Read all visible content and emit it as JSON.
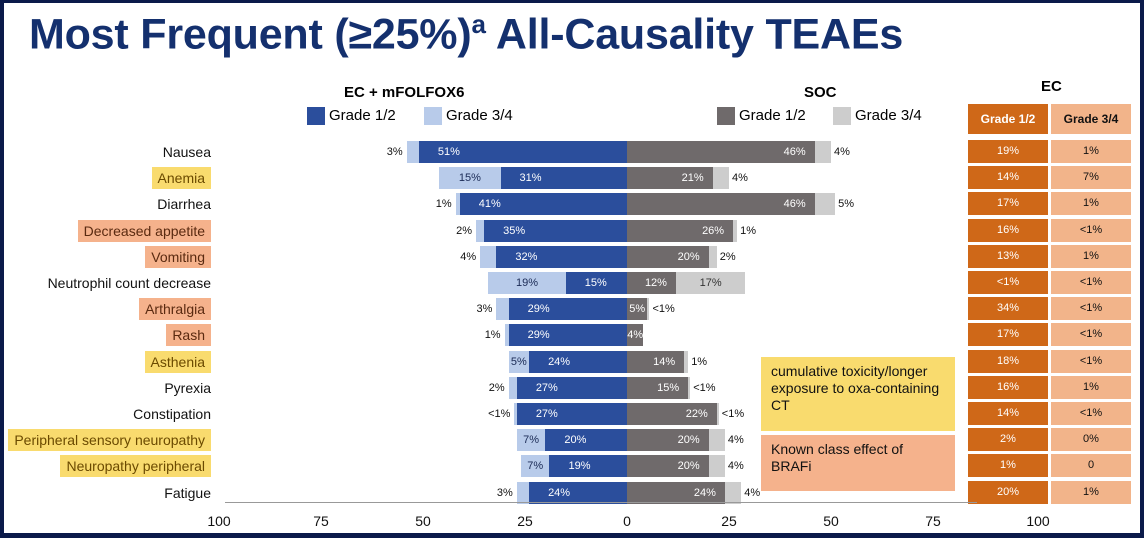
{
  "title": {
    "main": "Most Frequent (≥25%)",
    "sup": "a",
    "rest": " All-Causality TEAEs"
  },
  "groups": {
    "left": "EC + mFOLFOX6",
    "right": "SOC",
    "ec": "EC"
  },
  "legend": {
    "left_g12": "Grade 1/2",
    "left_g34": "Grade 3/4",
    "right_g12": "Grade 1/2",
    "right_g34": "Grade 3/4",
    "ec_g12": "Grade 1/2",
    "ec_g34": "Grade 3/4"
  },
  "colors": {
    "left_g12": "#2b4e9c",
    "left_g34": "#b8cbea",
    "right_g12": "#6f6a6b",
    "right_g34": "#cdcdcd",
    "ec_g12": "#cf6818",
    "ec_g34": "#f2b48a",
    "highlight_yellow": "#f9db6e",
    "highlight_orange": "#f5b28c",
    "title": "#14306e"
  },
  "notes": {
    "yellow": "cumulative toxicity/longer exposure to oxa-containing CT",
    "orange": "Known class effect of BRAFi"
  },
  "chart_data": {
    "type": "bar",
    "orientation": "horizontal-diverging",
    "categories": [
      "Nausea",
      "Anemia",
      "Diarrhea",
      "Decreased appetite",
      "Vomiting",
      "Neutrophil count decrease",
      "Arthralgia",
      "Rash",
      "Asthenia",
      "Pyrexia",
      "Constipation",
      "Peripheral sensory neuropathy",
      "Neuropathy peripheral",
      "Fatigue"
    ],
    "category_highlight": [
      "none",
      "yellow",
      "none",
      "orange",
      "orange",
      "none",
      "orange",
      "orange",
      "yellow",
      "none",
      "none",
      "yellow",
      "yellow",
      "none"
    ],
    "xlim": [
      -100,
      100
    ],
    "x_ticks": [
      "100",
      "75",
      "50",
      "25",
      "0",
      "25",
      "50",
      "75",
      "100"
    ],
    "series": [
      {
        "name": "EC + mFOLFOX6 Grade 1/2",
        "side": "left",
        "values": [
          51,
          31,
          41,
          35,
          32,
          15,
          29,
          29,
          24,
          27,
          27,
          20,
          19,
          24
        ],
        "labels": [
          "51%",
          "31%",
          "41%",
          "35%",
          "32%",
          "15%",
          "29%",
          "29%",
          "24%",
          "27%",
          "27%",
          "20%",
          "19%",
          "24%"
        ]
      },
      {
        "name": "EC + mFOLFOX6 Grade 3/4",
        "side": "left",
        "values": [
          3,
          15,
          1,
          2,
          4,
          19,
          3,
          1,
          5,
          2,
          0.5,
          7,
          7,
          3
        ],
        "labels": [
          "3%",
          "15%",
          "1%",
          "2%",
          "4%",
          "19%",
          "3%",
          "1%",
          "5%",
          "2%",
          "<1%",
          "7%",
          "7%",
          "3%"
        ]
      },
      {
        "name": "SOC Grade 1/2",
        "side": "right",
        "values": [
          46,
          21,
          46,
          26,
          20,
          12,
          5,
          4,
          14,
          15,
          22,
          20,
          20,
          24
        ],
        "labels": [
          "46%",
          "21%",
          "46%",
          "26%",
          "20%",
          "12%",
          "5%",
          "4%",
          "14%",
          "15%",
          "22%",
          "20%",
          "20%",
          "24%"
        ]
      },
      {
        "name": "SOC Grade 3/4",
        "side": "right",
        "values": [
          4,
          4,
          5,
          1,
          2,
          17,
          0.5,
          0,
          1,
          0.5,
          0.5,
          4,
          4,
          4
        ],
        "labels": [
          "4%",
          "4%",
          "5%",
          "1%",
          "2%",
          "17%",
          "<1%",
          "",
          "1%",
          "<1%",
          "<1%",
          "4%",
          "4%",
          "4%"
        ]
      }
    ],
    "ec_table": {
      "grade12": [
        "19%",
        "14%",
        "17%",
        "16%",
        "13%",
        "<1%",
        "34%",
        "17%",
        "18%",
        "16%",
        "14%",
        "2%",
        "1%",
        "20%"
      ],
      "grade34": [
        "1%",
        "7%",
        "1%",
        "<1%",
        "1%",
        "<1%",
        "<1%",
        "<1%",
        "<1%",
        "1%",
        "<1%",
        "0%",
        "0",
        "1%"
      ]
    }
  }
}
